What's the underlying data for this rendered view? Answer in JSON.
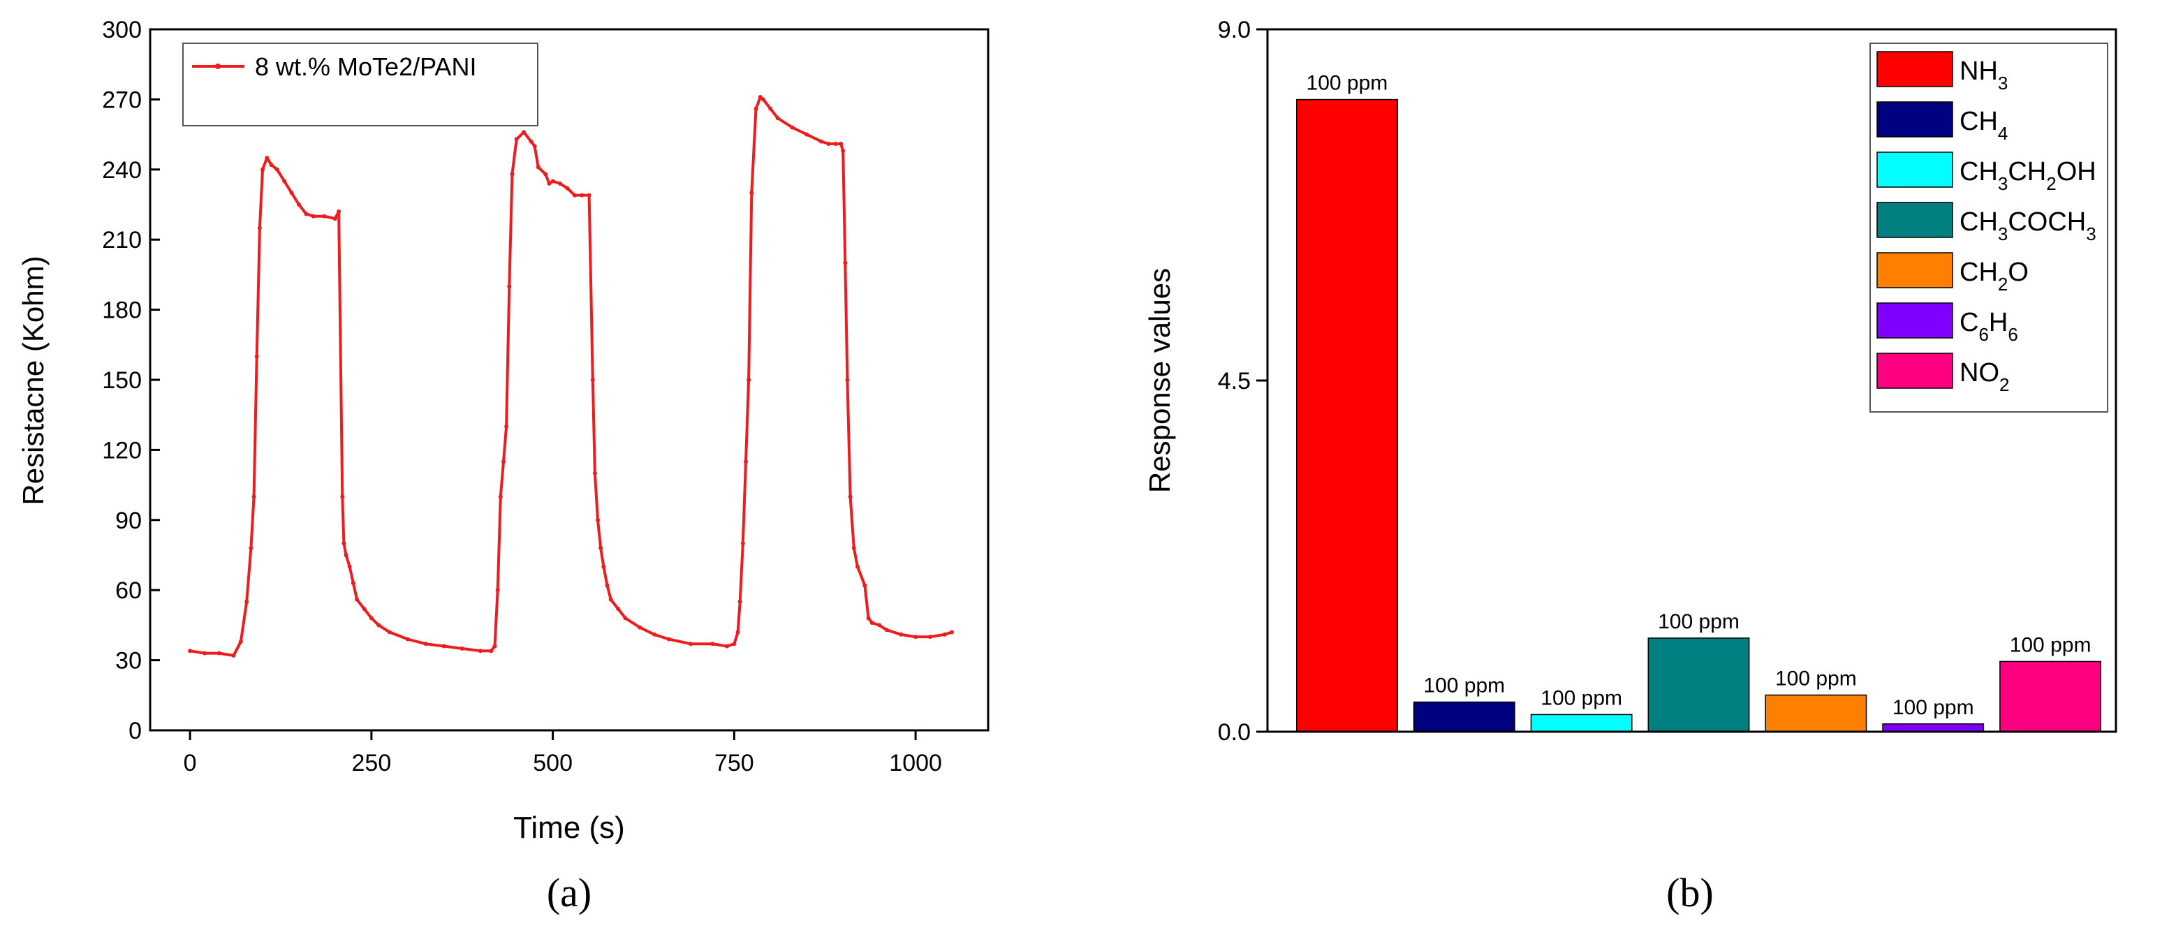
{
  "chart_data": [
    {
      "type": "line",
      "panel_label": "(a)",
      "xlabel": "Time (s)",
      "ylabel": "Resistacne (Kohm)",
      "xlim": [
        -55,
        1100
      ],
      "ylim": [
        0,
        300
      ],
      "xticks": [
        0,
        250,
        500,
        750,
        1000
      ],
      "yticks": [
        0,
        30,
        60,
        90,
        120,
        150,
        180,
        210,
        240,
        270,
        300
      ],
      "color": "#ee1c1c",
      "legend": "top-left",
      "series": [
        {
          "name": "8 wt.% MoTe2/PANI",
          "x": [
            0,
            20,
            40,
            60,
            70,
            78,
            84,
            88,
            92,
            96,
            100,
            106,
            112,
            120,
            130,
            140,
            150,
            160,
            170,
            185,
            200,
            205,
            210,
            212,
            215,
            220,
            225,
            230,
            240,
            250,
            260,
            275,
            300,
            325,
            350,
            375,
            400,
            415,
            420,
            424,
            428,
            432,
            436,
            440,
            444,
            450,
            460,
            470,
            475,
            480,
            490,
            495,
            500,
            510,
            520,
            530,
            540,
            550,
            555,
            558,
            562,
            566,
            570,
            575,
            580,
            590,
            600,
            620,
            640,
            660,
            690,
            720,
            740,
            750,
            755,
            758,
            762,
            766,
            770,
            774,
            780,
            786,
            790,
            800,
            810,
            830,
            850,
            870,
            880,
            890,
            897,
            900,
            903,
            906,
            910,
            915,
            920,
            930,
            935,
            940,
            950,
            960,
            980,
            1000,
            1020,
            1040,
            1050
          ],
          "y": [
            34,
            33,
            33,
            32,
            38,
            55,
            78,
            100,
            160,
            215,
            240,
            245,
            242,
            240,
            235,
            230,
            225,
            221,
            220,
            220,
            219,
            222,
            100,
            80,
            75,
            70,
            63,
            56,
            52,
            48,
            45,
            42,
            39,
            37,
            36,
            35,
            34,
            34,
            36,
            60,
            100,
            115,
            130,
            190,
            238,
            253,
            256,
            252,
            250,
            241,
            238,
            234,
            235,
            234,
            232,
            229,
            229,
            229,
            150,
            110,
            90,
            78,
            70,
            62,
            56,
            52,
            48,
            44,
            41,
            39,
            37,
            37,
            36,
            37,
            42,
            55,
            80,
            115,
            150,
            230,
            266,
            271,
            270,
            266,
            262,
            258,
            255,
            252,
            251,
            251,
            251,
            248,
            200,
            150,
            100,
            78,
            70,
            62,
            48,
            46,
            45,
            43,
            41,
            40,
            40,
            41,
            42
          ]
        }
      ]
    },
    {
      "type": "bar",
      "panel_label": "(b)",
      "xlabel": "",
      "ylabel": "Response values",
      "ylim": [
        0,
        9.0
      ],
      "yticks": [
        "0.0",
        "4.5",
        "9.0"
      ],
      "legend": "top-right",
      "categories": [
        "NH3",
        "CH4",
        "CH3CH2OH",
        "CH3COCH3",
        "CH2O",
        "C6H6",
        "NO2"
      ],
      "values": [
        8.1,
        0.38,
        0.22,
        1.2,
        0.47,
        0.1,
        0.9
      ],
      "bar_labels": [
        "100 ppm",
        "100 ppm",
        "100 ppm",
        "100 ppm",
        "100 ppm",
        "100 ppm",
        "100 ppm"
      ],
      "colors": [
        "#ff0000",
        "#000080",
        "#00ffff",
        "#008080",
        "#ff8000",
        "#8000ff",
        "#ff0080"
      ],
      "legend_entries": [
        {
          "base": "NH",
          "sub": "3",
          "rest": ""
        },
        {
          "base": "CH",
          "sub": "4",
          "rest": ""
        },
        {
          "base": "CH",
          "sub": "3",
          "rest": "CH",
          "sub2": "2",
          "rest2": "OH"
        },
        {
          "base": "CH",
          "sub": "3",
          "rest": "COCH",
          "sub2": "3",
          "rest2": ""
        },
        {
          "base": "CH",
          "sub": "2",
          "rest": "O"
        },
        {
          "base": "C",
          "sub": "6",
          "rest": "H",
          "sub2": "6",
          "rest2": ""
        },
        {
          "base": "NO",
          "sub": "2",
          "rest": ""
        }
      ]
    }
  ]
}
